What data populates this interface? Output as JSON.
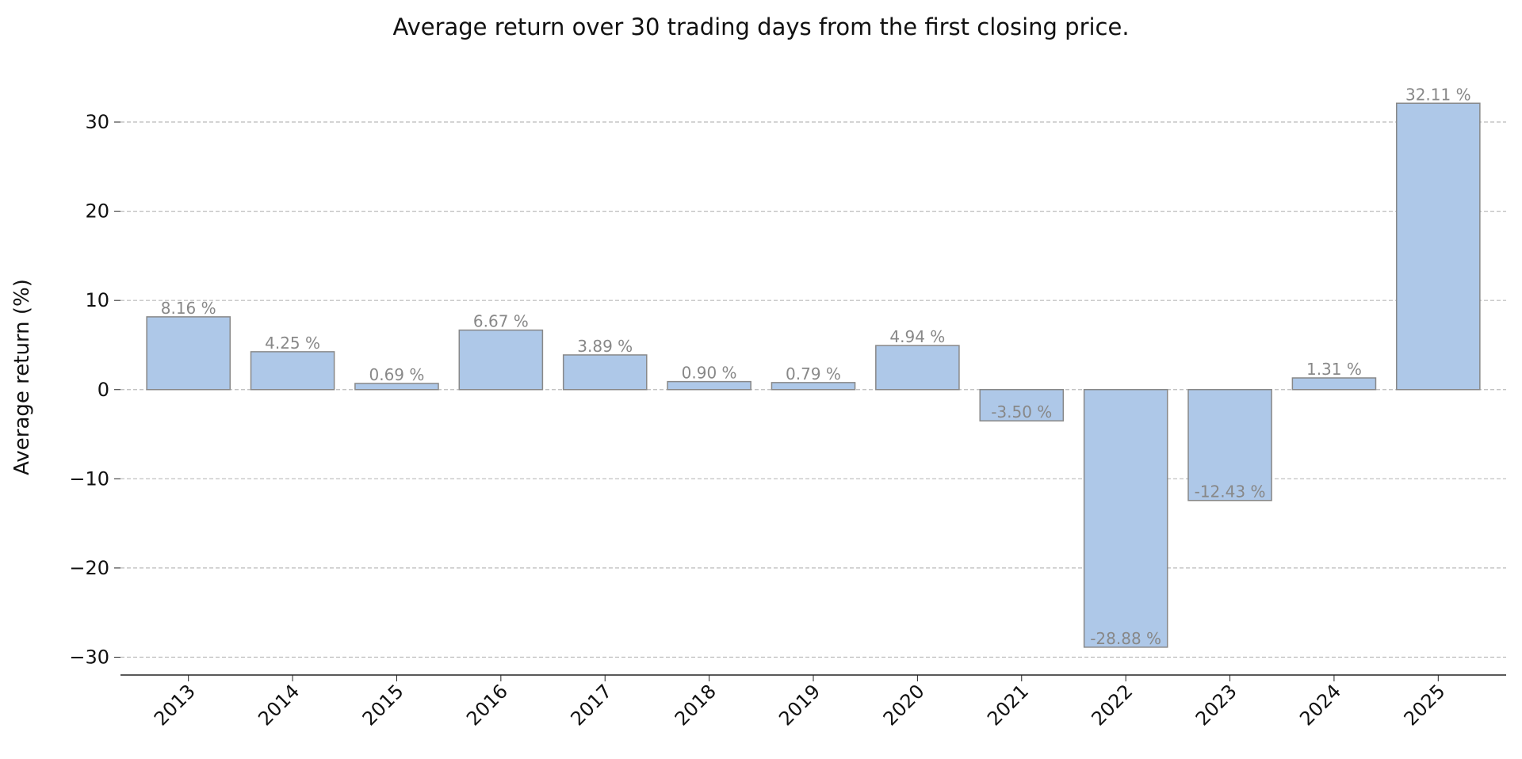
{
  "chart_data": {
    "type": "bar",
    "title": "Average return over 30 trading days from the first closing price.",
    "y_label": "Average return (%)",
    "categories": [
      "2013",
      "2014",
      "2015",
      "2016",
      "2017",
      "2018",
      "2019",
      "2020",
      "2021",
      "2022",
      "2023",
      "2024",
      "2025"
    ],
    "values": [
      8.16,
      4.25,
      0.69,
      6.67,
      3.89,
      0.9,
      0.79,
      4.94,
      -3.5,
      -28.88,
      -12.43,
      1.31,
      32.11
    ],
    "value_labels": [
      "8.16 %",
      "4.25 %",
      "0.69 %",
      "6.67 %",
      "3.89 %",
      "0.90 %",
      "0.79 %",
      "4.94 %",
      "-3.50 %",
      "-28.88 %",
      "-12.43 %",
      "1.31 %",
      "32.11 %"
    ],
    "color": "#aec8e8",
    "ylim": [
      -32,
      34
    ],
    "yticks": [
      {
        "value": -30,
        "label": "−30"
      },
      {
        "value": -20,
        "label": "−20"
      },
      {
        "value": -10,
        "label": "−10"
      },
      0,
      10,
      20,
      30
    ],
    "grid": true
  }
}
